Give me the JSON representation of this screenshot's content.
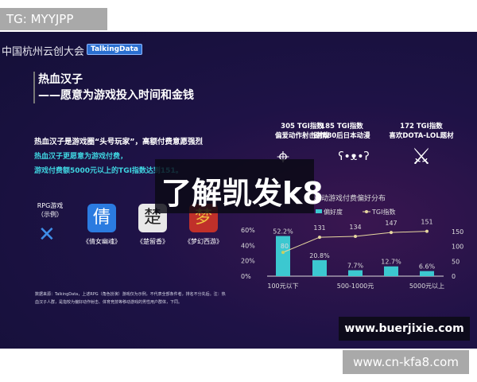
{
  "top_tag": "TG: MYYJPP",
  "bottom_tag": "www.cn-kfa8.com",
  "slide": {
    "conference": "中国杭州云创大会",
    "brand": "TalkingData",
    "title_line1": "热血汉子",
    "title_line2": "——愿意为游戏投入时间和金钱",
    "lead": "热血汉子是游戏圈“头号玩家”，高额付费意愿强烈",
    "sub1": "热血汉子更愿意为游戏付费，",
    "sub2": "游戏付费额5000元以上的TGI指数达到151。",
    "stats": [
      {
        "l1": "305 TGI指数",
        "l2": "偏爱动作射击游戏",
        "icon": "crosshair-icon",
        "glyph": "⌖"
      },
      {
        "l1": "185 TGI指数",
        "l2": "钟情80后日本动漫",
        "icon": "bear-icon",
        "glyph": "ʕ•ᴥ•ʔ"
      },
      {
        "l1": "172 TGI指数",
        "l2": "喜欢DOTA-LOL题材",
        "icon": "crossed-swords-icon",
        "glyph": "⚔"
      }
    ],
    "rpg_label1": "RPG游戏",
    "rpg_label2": "（示例）",
    "apps": [
      {
        "name": "《倩女幽魂》",
        "color": "#2b7be0",
        "glyph": "倩"
      },
      {
        "name": "《楚留香》",
        "color": "#e8e8e8",
        "glyph": "楚"
      },
      {
        "name": "《梦幻西游》",
        "color": "#c0302a",
        "glyph": "梦"
      }
    ],
    "note": "数据来源：TalkingData，上述RPG（角色扮演）游戏仅为示例，不代表全部条件者，排名不分先后。注：热血汉子人群，是指较为偏好动作射击、体育竞技等移动游戏的男性用户群体，下同。",
    "overlay_text": "了解凯发k8",
    "watermark": "www.buerjixie.com"
  },
  "chart_data": {
    "type": "bar",
    "title": "移动游戏付费偏好分布",
    "categories": [
      "100元以下",
      "",
      "500-1000元",
      "",
      "5000元以上"
    ],
    "series": [
      {
        "name": "偏好度",
        "type": "bar",
        "values": [
          52.2,
          20.8,
          7.7,
          12.7,
          6.6
        ],
        "labels": [
          "52.2%",
          "20.8%",
          "7.7%",
          "12.7%",
          "6.6%"
        ],
        "color": "#3cc8d0"
      },
      {
        "name": "TGI指数",
        "type": "line",
        "values": [
          80,
          131,
          134,
          147,
          151
        ],
        "color": "#e8d8a0"
      }
    ],
    "y_left": {
      "ticks": [
        "0%",
        "20%",
        "40%",
        "60%"
      ],
      "range": [
        0,
        60
      ]
    },
    "y_right": {
      "ticks": [
        "0",
        "50",
        "100",
        "150"
      ],
      "range": [
        0,
        150
      ]
    },
    "legend": "top"
  }
}
